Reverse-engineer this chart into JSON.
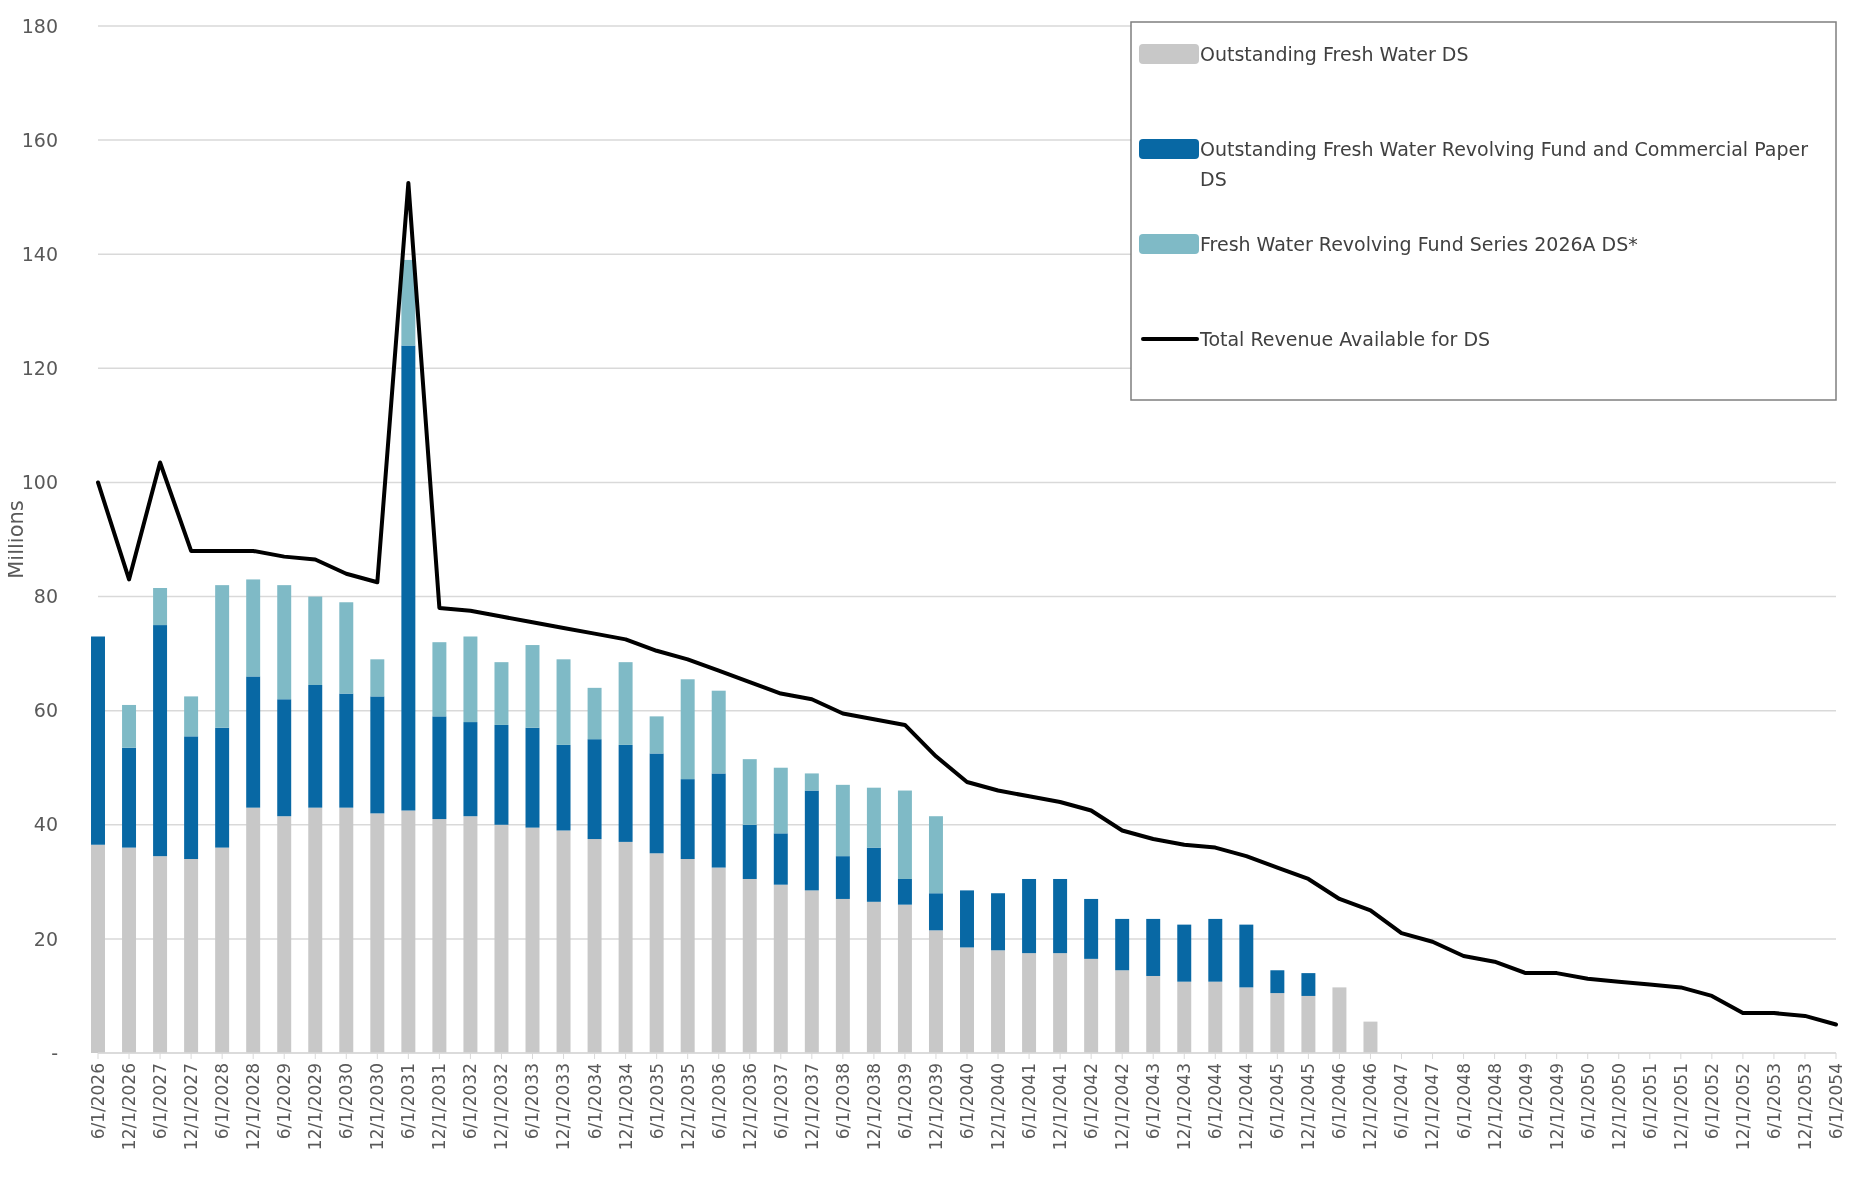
{
  "chart_data": {
    "type": "bar",
    "stacked": true,
    "ylabel": "Millions",
    "ylim": [
      0,
      180
    ],
    "yticks": [
      {
        "value": 0,
        "label": "-"
      },
      20,
      40,
      60,
      80,
      100,
      120,
      140,
      160,
      180
    ],
    "grid": "y",
    "legend": "top right",
    "categories": [
      "6/1/2026",
      "12/1/2026",
      "6/1/2027",
      "12/1/2027",
      "6/1/2028",
      "12/1/2028",
      "6/1/2029",
      "12/1/2029",
      "6/1/2030",
      "12/1/2030",
      "6/1/2031",
      "12/1/2031",
      "6/1/2032",
      "12/1/2032",
      "6/1/2033",
      "12/1/2033",
      "6/1/2034",
      "12/1/2034",
      "6/1/2035",
      "12/1/2035",
      "6/1/2036",
      "12/1/2036",
      "6/1/2037",
      "12/1/2037",
      "6/1/2038",
      "12/1/2038",
      "6/1/2039",
      "12/1/2039",
      "6/1/2040",
      "12/1/2040",
      "6/1/2041",
      "12/1/2041",
      "6/1/2042",
      "12/1/2042",
      "6/1/2043",
      "12/1/2043",
      "6/1/2044",
      "12/1/2044",
      "6/1/2045",
      "12/1/2045",
      "6/1/2046",
      "12/1/2046",
      "6/1/2047",
      "12/1/2047",
      "6/1/2048",
      "12/1/2048",
      "6/1/2049",
      "12/1/2049",
      "6/1/2050",
      "12/1/2050",
      "6/1/2051",
      "12/1/2051",
      "6/1/2052",
      "12/1/2052",
      "6/1/2053",
      "12/1/2053",
      "6/1/2054"
    ],
    "series": [
      {
        "name": "Outstanding Fresh Water DS",
        "color": "#c8c8c8",
        "values": [
          36.5,
          36,
          34.5,
          34,
          36,
          43,
          41.5,
          43,
          43,
          42,
          42.5,
          41,
          41.5,
          40,
          39.5,
          39,
          37.5,
          37,
          35,
          34,
          32.5,
          30.5,
          29.5,
          28.5,
          27,
          26.5,
          26,
          21.5,
          18.5,
          18,
          17.5,
          17.5,
          16.5,
          14.5,
          13.5,
          12.5,
          12.5,
          11.5,
          10.5,
          10,
          11.5,
          5.5,
          null,
          null,
          null,
          null,
          null,
          null,
          null,
          null,
          null,
          null,
          null,
          null,
          null,
          null,
          null
        ]
      },
      {
        "name": "Outstanding Fresh Water Revolving Fund and Commercial Paper DS",
        "color": "#0868a4",
        "values": [
          36.5,
          17.5,
          40.5,
          21.5,
          21,
          23,
          20.5,
          21.5,
          20,
          20.5,
          81.5,
          18,
          16.5,
          17.5,
          17.5,
          15,
          17.5,
          17,
          17.5,
          14,
          16.5,
          9.5,
          9,
          17.5,
          7.5,
          9.5,
          4.5,
          6.5,
          10,
          10,
          13,
          13,
          10.5,
          9,
          10,
          10,
          11,
          11,
          4,
          4,
          null,
          null,
          null,
          null,
          null,
          null,
          null,
          null,
          null,
          null,
          null,
          null,
          null,
          null,
          null,
          null,
          null
        ]
      },
      {
        "name": "Fresh Water Revolving Fund Series 2026A DS*",
        "color": "#7fbac6",
        "values": [
          null,
          7.5,
          6.5,
          7,
          25,
          17,
          20,
          15.5,
          16,
          6.5,
          15,
          13,
          15,
          11,
          14.5,
          15,
          9,
          14.5,
          6.5,
          17.5,
          14.5,
          11.5,
          11.5,
          3,
          12.5,
          10.5,
          15.5,
          13.5,
          null,
          null,
          null,
          null,
          null,
          null,
          null,
          null,
          null,
          null,
          null,
          null,
          null,
          null,
          null,
          null,
          null,
          null,
          null,
          null,
          null,
          null,
          null,
          null,
          null,
          null,
          null,
          null,
          null
        ]
      },
      {
        "name": "Total Revenue Available for DS",
        "type": "line",
        "color": "#000000",
        "values": [
          100,
          83,
          103.5,
          88,
          88,
          88,
          87,
          86.5,
          84,
          82.5,
          152.5,
          78,
          77.5,
          76.5,
          75.5,
          74.5,
          73.5,
          72.5,
          70.5,
          69,
          67,
          65,
          63,
          62,
          59.5,
          58.5,
          57.5,
          52,
          47.5,
          46,
          45,
          44,
          42.5,
          39,
          37.5,
          36.5,
          36,
          34.5,
          32.5,
          30.5,
          27,
          25,
          21,
          19.5,
          17,
          16,
          14,
          14,
          13,
          12.5,
          12,
          11.5,
          10,
          7,
          7,
          6.5,
          5
        ]
      }
    ]
  }
}
